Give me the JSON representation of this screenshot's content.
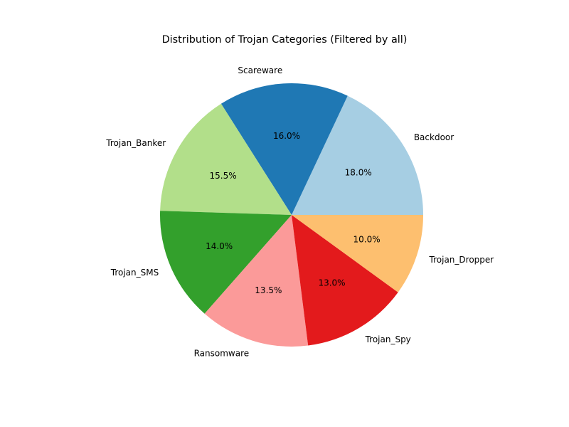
{
  "chart_data": {
    "type": "pie",
    "title": "Distribution of Trojan Categories (Filtered by all)",
    "slices": [
      {
        "label": "Backdoor",
        "value": 18.0,
        "pct_label": "18.0%",
        "color": "#a6cee3"
      },
      {
        "label": "Scareware",
        "value": 16.0,
        "pct_label": "16.0%",
        "color": "#1f78b4"
      },
      {
        "label": "Trojan_Banker",
        "value": 15.5,
        "pct_label": "15.5%",
        "color": "#b2df8a"
      },
      {
        "label": "Trojan_SMS",
        "value": 14.0,
        "pct_label": "14.0%",
        "color": "#33a02c"
      },
      {
        "label": "Ransomware",
        "value": 13.5,
        "pct_label": "13.5%",
        "color": "#fb9a99"
      },
      {
        "label": "Trojan_Spy",
        "value": 13.0,
        "pct_label": "13.0%",
        "color": "#e31a1c"
      },
      {
        "label": "Trojan_Dropper",
        "value": 10.0,
        "pct_label": "10.0%",
        "color": "#fdbf6f"
      }
    ]
  }
}
